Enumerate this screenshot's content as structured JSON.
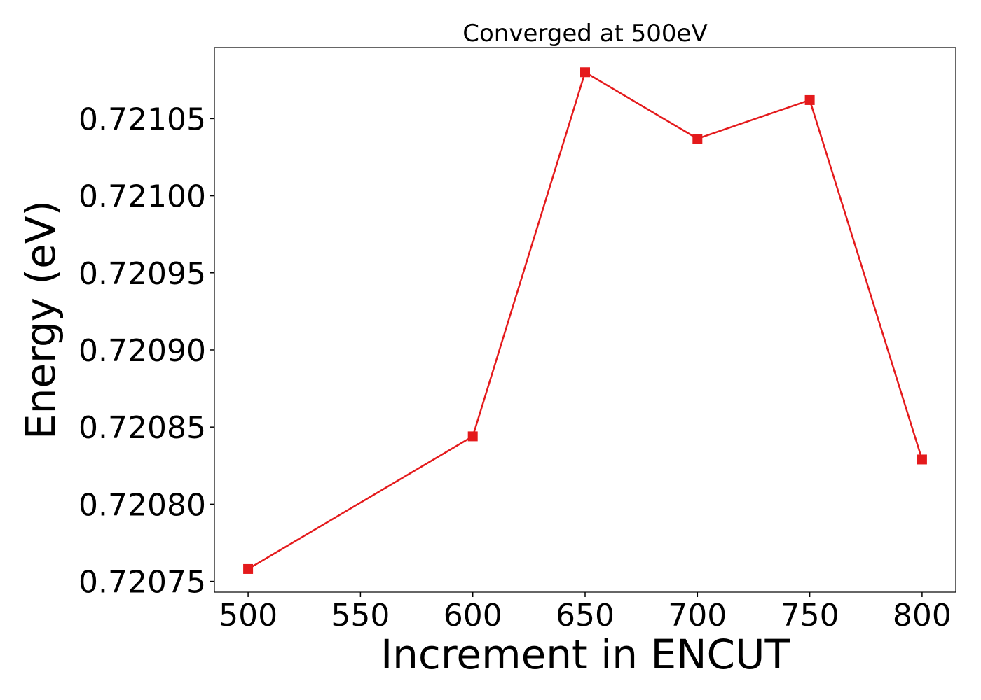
{
  "chart_data": {
    "type": "line",
    "title": "Converged at 500eV",
    "xlabel": "Increment in ENCUT",
    "ylabel": "Energy (eV)",
    "x": [
      500,
      600,
      650,
      700,
      750,
      800
    ],
    "series": [
      {
        "values": [
          0.720758,
          0.720844,
          0.72108,
          0.721037,
          0.721062,
          0.720829
        ],
        "color": "#e41a1c",
        "marker": "square"
      }
    ],
    "xlim": [
      485,
      815
    ],
    "ylim": [
      0.720743,
      0.721096
    ],
    "xticks": [
      500,
      550,
      600,
      650,
      700,
      750,
      800
    ],
    "xtick_labels": [
      "500",
      "550",
      "600",
      "650",
      "700",
      "750",
      "800"
    ],
    "yticks": [
      0.72075,
      0.7208,
      0.72085,
      0.7209,
      0.72095,
      0.721,
      0.72105
    ],
    "ytick_labels": [
      "0.72075",
      "0.72080",
      "0.72085",
      "0.72090",
      "0.72095",
      "0.72100",
      "0.72105"
    ],
    "grid": false,
    "legend": false
  }
}
